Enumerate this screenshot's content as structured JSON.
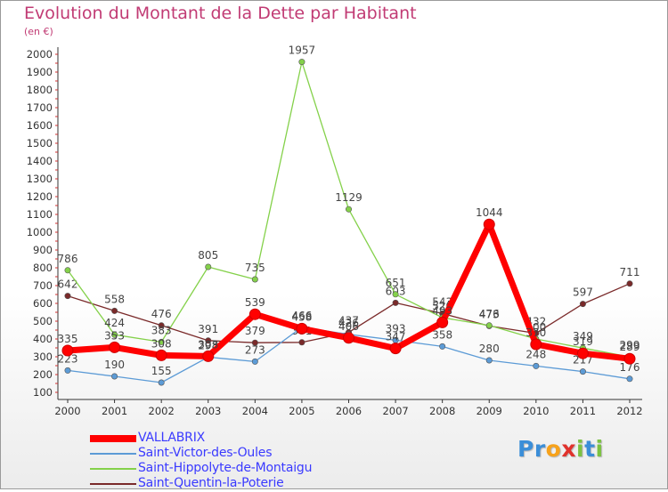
{
  "chart_data": {
    "type": "line",
    "title": "Evolution du Montant de la Dette par Habitant",
    "subtitle": "(en €)",
    "ylim": [
      100,
      2000
    ],
    "yticks": [
      100,
      200,
      300,
      400,
      500,
      600,
      700,
      800,
      900,
      1000,
      1100,
      1200,
      1300,
      1400,
      1500,
      1600,
      1700,
      1800,
      1900,
      2000
    ],
    "grid": false,
    "legend_position": "bottom-left",
    "x": [
      "2000",
      "2001",
      "2002",
      "2003",
      "2004",
      "2005",
      "2006",
      "2007",
      "2008",
      "2009",
      "2010",
      "2011",
      "2012"
    ],
    "series": [
      {
        "name": "VALLABRIX",
        "color": "#ff0000",
        "values": [
          335,
          353,
          308,
          303,
          539,
          458,
          406,
          347,
          493,
          1044,
          370,
          319,
          289
        ]
      },
      {
        "name": "Saint-Victor-des-Oules",
        "color": "#5c9bd6",
        "values": [
          223,
          190,
          155,
          298,
          273,
          466,
          426,
          393,
          358,
          280,
          248,
          217,
          176
        ]
      },
      {
        "name": "Saint-Hippolyte-de-Montaigu",
        "color": "#84d14a",
        "values": [
          786,
          424,
          383,
          805,
          735,
          1957,
          1129,
          651,
          520,
          476,
          400,
          349,
          299
        ]
      },
      {
        "name": "Saint-Quentin-la-Poterie",
        "color": "#7a2a2a",
        "values": [
          642,
          558,
          476,
          391,
          379,
          381,
          437,
          603,
          543,
          473,
          432,
          597,
          711
        ]
      }
    ]
  },
  "logo": {
    "letters": [
      "P",
      "r",
      "o",
      "x",
      "i",
      "t",
      "i"
    ],
    "colors": [
      "#3b8ed8",
      "#3b8ed8",
      "#f7a21b",
      "#e0322c",
      "#7cc242",
      "#3b8ed8",
      "#7cc242"
    ]
  }
}
